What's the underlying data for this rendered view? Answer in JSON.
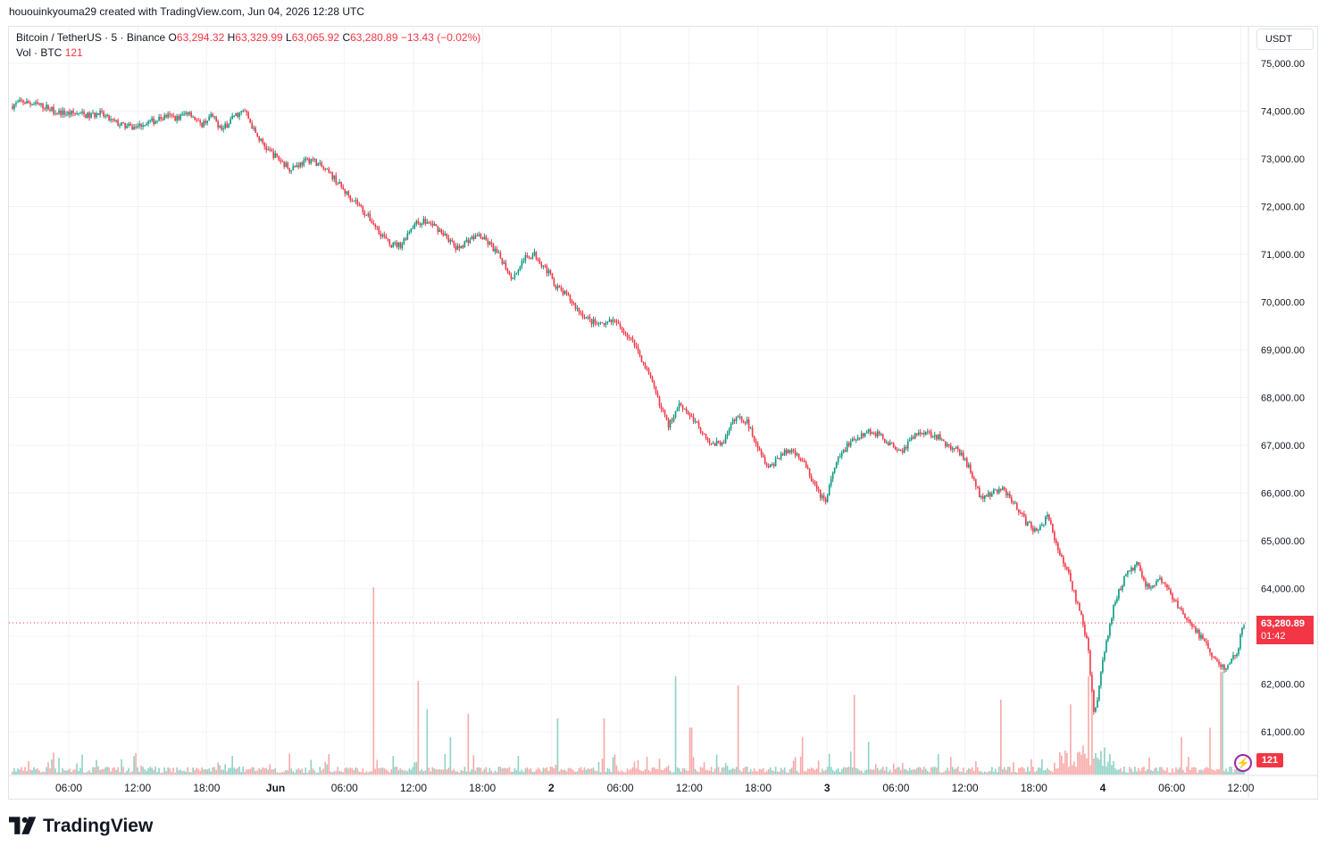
{
  "header": {
    "created_by": "hououinkyouma29 created with TradingView.com, Jun 04, 2026 12:28 UTC"
  },
  "legend": {
    "symbol": "Bitcoin / TetherUS · 5 · Binance",
    "o_label": "O",
    "o_value": "63,294.32",
    "h_label": "H",
    "h_value": "63,329.99",
    "l_label": "L",
    "l_value": "63,065.92",
    "c_label": "C",
    "c_value": "63,280.89",
    "change": "−13.43 (−0.02%)",
    "vol_label": "Vol · BTC",
    "vol_value": "121"
  },
  "currency_button": "USDT",
  "price_tag": {
    "price": "63,280.89",
    "countdown": "01:42"
  },
  "volume_tag": "121",
  "brand": "TradingView",
  "colors": {
    "up": "#089981",
    "down": "#f23645",
    "vol_up": "#8fd1c4",
    "vol_down": "#f7a9a7",
    "grid": "#f0f3fa"
  },
  "chart_data": {
    "type": "candlestick",
    "y_axis": {
      "range": [
        60500,
        75400
      ],
      "ticks": [
        75000,
        74000,
        73000,
        72000,
        71000,
        70000,
        69000,
        68000,
        67000,
        66000,
        65000,
        64000,
        63000,
        62000,
        61000
      ],
      "tick_labels": [
        "75,000.00",
        "74,000.00",
        "73,000.00",
        "72,000.00",
        "71,000.00",
        "70,000.00",
        "69,000.00",
        "68,000.00",
        "67,000.00",
        "66,000.00",
        "65,000.00",
        "64,000.00",
        "63,000.00",
        "62,000.00",
        "61,000.00"
      ]
    },
    "x_axis": {
      "tick_labels": [
        "06:00",
        "12:00",
        "18:00",
        "Jun",
        "06:00",
        "12:00",
        "18:00",
        "2",
        "06:00",
        "12:00",
        "18:00",
        "3",
        "06:00",
        "12:00",
        "18:00",
        "4",
        "06:00",
        "12:00"
      ],
      "bold_labels": [
        "Jun",
        "2",
        "3",
        "4"
      ]
    },
    "last_price": 63280.89,
    "price_path": [
      [
        0,
        74100
      ],
      [
        0.5,
        74200
      ],
      [
        1,
        74150
      ],
      [
        1.5,
        74100
      ],
      [
        2,
        74000
      ],
      [
        2.5,
        73950
      ],
      [
        3,
        73950
      ],
      [
        3.5,
        73900
      ],
      [
        4,
        73950
      ],
      [
        4.5,
        73800
      ],
      [
        5,
        73700
      ],
      [
        5.5,
        73650
      ],
      [
        6,
        73750
      ],
      [
        6.5,
        73800
      ],
      [
        7,
        73900
      ],
      [
        7.5,
        73850
      ],
      [
        8,
        74000
      ],
      [
        8.5,
        73700
      ],
      [
        9,
        73900
      ],
      [
        9.5,
        73600
      ],
      [
        10,
        73900
      ],
      [
        10.5,
        74000
      ],
      [
        11,
        73500
      ],
      [
        11.5,
        73200
      ],
      [
        12,
        73000
      ],
      [
        12.5,
        72800
      ],
      [
        13,
        72900
      ],
      [
        13.5,
        73000
      ],
      [
        14,
        72800
      ],
      [
        14.5,
        72600
      ],
      [
        15,
        72300
      ],
      [
        15.5,
        72100
      ],
      [
        16,
        71800
      ],
      [
        16.5,
        71500
      ],
      [
        17,
        71200
      ],
      [
        17.5,
        71200
      ],
      [
        18,
        71600
      ],
      [
        18.5,
        71700
      ],
      [
        19,
        71600
      ],
      [
        19.5,
        71400
      ],
      [
        20,
        71100
      ],
      [
        20.5,
        71300
      ],
      [
        21,
        71400
      ],
      [
        21.5,
        71200
      ],
      [
        22,
        70900
      ],
      [
        22.5,
        70500
      ],
      [
        23,
        70900
      ],
      [
        23.5,
        71000
      ],
      [
        24,
        70700
      ],
      [
        24.5,
        70300
      ],
      [
        25,
        70100
      ],
      [
        25.5,
        69800
      ],
      [
        26,
        69600
      ],
      [
        26.5,
        69500
      ],
      [
        27,
        69600
      ],
      [
        27.5,
        69400
      ],
      [
        28,
        69100
      ],
      [
        28.5,
        68600
      ],
      [
        29,
        68000
      ],
      [
        29.5,
        67400
      ],
      [
        30,
        67900
      ],
      [
        30.5,
        67600
      ],
      [
        31,
        67300
      ],
      [
        31.5,
        67000
      ],
      [
        32,
        67100
      ],
      [
        32.5,
        67600
      ],
      [
        33,
        67500
      ],
      [
        33.5,
        67000
      ],
      [
        34,
        66500
      ],
      [
        34.5,
        66800
      ],
      [
        35,
        66900
      ],
      [
        35.5,
        66700
      ],
      [
        36,
        66200
      ],
      [
        36.5,
        65800
      ],
      [
        37,
        66600
      ],
      [
        37.5,
        67000
      ],
      [
        38,
        67200
      ],
      [
        38.5,
        67300
      ],
      [
        39,
        67200
      ],
      [
        39.5,
        67000
      ],
      [
        40,
        66900
      ],
      [
        40.5,
        67200
      ],
      [
        41,
        67300
      ],
      [
        41.5,
        67200
      ],
      [
        42,
        67000
      ],
      [
        42.5,
        66900
      ],
      [
        43,
        66500
      ],
      [
        43.5,
        65900
      ],
      [
        44,
        66000
      ],
      [
        44.5,
        66100
      ],
      [
        45,
        65800
      ],
      [
        45.5,
        65400
      ],
      [
        46,
        65200
      ],
      [
        46.5,
        65500
      ],
      [
        47,
        64800
      ],
      [
        47.5,
        64200
      ],
      [
        48,
        63400
      ],
      [
        48.3,
        62800
      ],
      [
        48.6,
        61300
      ],
      [
        49,
        62600
      ],
      [
        49.5,
        63700
      ],
      [
        50,
        64300
      ],
      [
        50.5,
        64500
      ],
      [
        51,
        64000
      ],
      [
        51.5,
        64200
      ],
      [
        52,
        63900
      ],
      [
        52.5,
        63500
      ],
      [
        53,
        63200
      ],
      [
        53.5,
        62900
      ],
      [
        54,
        62500
      ],
      [
        54.5,
        62300
      ],
      [
        55,
        62700
      ],
      [
        55.3,
        63280
      ]
    ],
    "volume_spikes": [
      [
        16.3,
        40
      ],
      [
        18.3,
        20
      ],
      [
        18.7,
        14
      ],
      [
        19.7,
        8
      ],
      [
        20.5,
        13
      ],
      [
        24.5,
        12
      ],
      [
        26.6,
        12
      ],
      [
        29.8,
        21
      ],
      [
        30.5,
        10
      ],
      [
        32.6,
        19
      ],
      [
        35.5,
        8
      ],
      [
        37.8,
        17
      ],
      [
        38.5,
        7
      ],
      [
        44.4,
        16
      ],
      [
        47.5,
        15
      ],
      [
        48.3,
        21
      ],
      [
        48.5,
        18
      ],
      [
        52.5,
        8
      ],
      [
        53.8,
        10
      ],
      [
        54.3,
        22
      ]
    ],
    "volume_max_reference": 40
  }
}
